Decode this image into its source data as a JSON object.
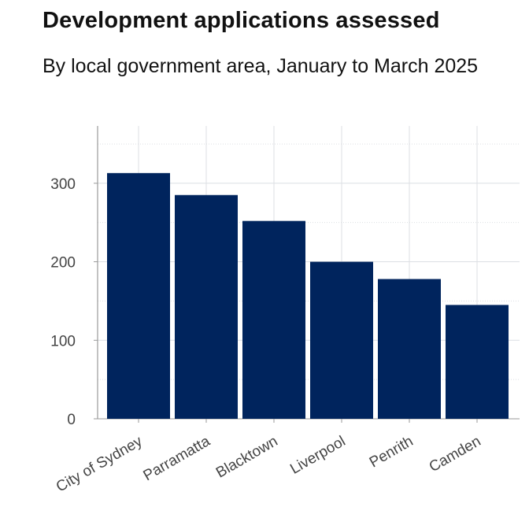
{
  "chart_data": {
    "type": "bar",
    "title": "Development applications assessed",
    "subtitle": "By local government area, January to March 2025",
    "xlabel": "",
    "ylabel": "",
    "categories": [
      "City of Sydney",
      "Parramatta",
      "Blacktown",
      "Liverpool",
      "Penrith",
      "Camden"
    ],
    "values": [
      313,
      285,
      252,
      200,
      178,
      145
    ],
    "ylim": [
      0,
      373
    ],
    "yticks": [
      0,
      100,
      200,
      300
    ],
    "minor_gridlines": [
      50,
      150,
      250,
      350
    ],
    "grid": true,
    "bar_color": "#00245D"
  }
}
